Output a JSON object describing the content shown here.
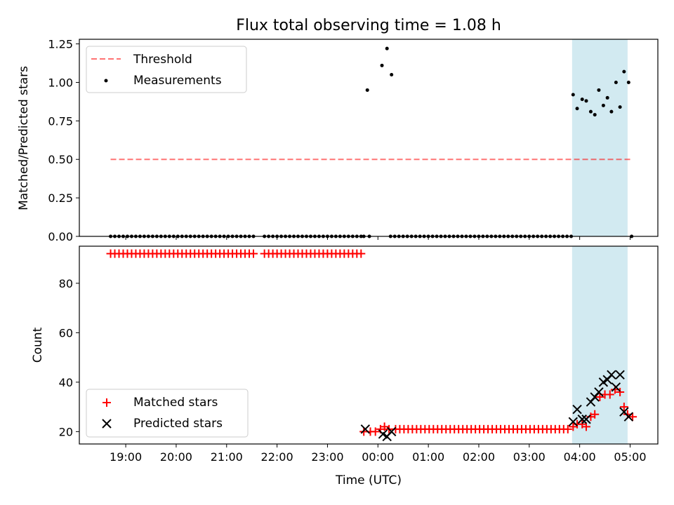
{
  "title": "Flux total observing time = 1.08 h",
  "colors": {
    "threshold": "#ff0000",
    "measurement": "#000000",
    "matched": "#ff0000",
    "predicted": "#000000",
    "span": "#add8e6"
  },
  "chart_data": [
    {
      "type": "scatter",
      "ylabel": "Matched/Predicted stars",
      "ylim": [
        0,
        1.28
      ],
      "yticks": [
        "0.00",
        "0.25",
        "0.50",
        "0.75",
        "1.00",
        "1.25"
      ],
      "ytick_values": [
        0,
        0.25,
        0.5,
        0.75,
        1.0,
        1.25
      ],
      "xlim_hours": [
        18.08,
        29.55
      ],
      "highlight_span_hours": [
        27.85,
        28.95
      ],
      "threshold": {
        "label": "Threshold",
        "value": 0.5,
        "x_range_hours": [
          18.7,
          29.05
        ]
      },
      "measurements": {
        "label": "Measurements",
        "zero_x_ranges": [
          [
            18.7,
            21.6,
            0.0833
          ],
          [
            21.75,
            23.7,
            0.0833
          ],
          [
            24.25,
            27.85,
            0.0833
          ]
        ],
        "points": [
          [
            23.72,
            0
          ],
          [
            23.83,
            0
          ],
          [
            23.79,
            0.95
          ],
          [
            24.08,
            1.11
          ],
          [
            24.18,
            1.22
          ],
          [
            24.27,
            1.05
          ],
          [
            27.87,
            0.92
          ],
          [
            27.95,
            0.83
          ],
          [
            28.05,
            0.89
          ],
          [
            28.13,
            0.88
          ],
          [
            28.22,
            0.81
          ],
          [
            28.3,
            0.79
          ],
          [
            28.38,
            0.95
          ],
          [
            28.47,
            0.85
          ],
          [
            28.55,
            0.9
          ],
          [
            28.63,
            0.81
          ],
          [
            28.72,
            1.0
          ],
          [
            28.8,
            0.84
          ],
          [
            28.88,
            1.07
          ],
          [
            28.97,
            1.0
          ],
          [
            29.03,
            0
          ]
        ]
      },
      "legend": [
        "Threshold",
        "Measurements"
      ]
    },
    {
      "type": "scatter",
      "ylabel": "Count",
      "xlabel": "Time (UTC)",
      "ylim": [
        15,
        95
      ],
      "yticks": [
        "20",
        "40",
        "60",
        "80"
      ],
      "ytick_values": [
        20,
        40,
        60,
        80
      ],
      "xticks": [
        "19:00",
        "20:00",
        "21:00",
        "22:00",
        "23:00",
        "00:00",
        "01:00",
        "02:00",
        "03:00",
        "04:00",
        "05:00"
      ],
      "xtick_hours": [
        19,
        20,
        21,
        22,
        23,
        24,
        25,
        26,
        27,
        28,
        29
      ],
      "matched": {
        "label": "Matched stars",
        "value_ranges": [
          [
            18.7,
            21.6,
            0.0833,
            92
          ],
          [
            21.75,
            23.7,
            0.0833,
            92
          ],
          [
            24.35,
            27.8,
            0.0833,
            21
          ]
        ],
        "points": [
          [
            23.72,
            20
          ],
          [
            23.85,
            20
          ],
          [
            23.95,
            20
          ],
          [
            24.05,
            21
          ],
          [
            24.13,
            22
          ],
          [
            24.22,
            21
          ],
          [
            27.87,
            22
          ],
          [
            27.95,
            23
          ],
          [
            28.05,
            23
          ],
          [
            28.13,
            22
          ],
          [
            28.22,
            26
          ],
          [
            28.3,
            27
          ],
          [
            28.4,
            34
          ],
          [
            28.5,
            35
          ],
          [
            28.6,
            35
          ],
          [
            28.7,
            37
          ],
          [
            28.8,
            36
          ],
          [
            28.88,
            30
          ],
          [
            28.95,
            27
          ],
          [
            29.05,
            26
          ]
        ]
      },
      "predicted": {
        "label": "Predicted stars",
        "points": [
          [
            23.75,
            21
          ],
          [
            24.1,
            19
          ],
          [
            24.18,
            18
          ],
          [
            24.27,
            20
          ],
          [
            27.87,
            24
          ],
          [
            27.95,
            29
          ],
          [
            28.05,
            25
          ],
          [
            28.13,
            25
          ],
          [
            28.22,
            32
          ],
          [
            28.3,
            34
          ],
          [
            28.38,
            36
          ],
          [
            28.47,
            40
          ],
          [
            28.55,
            41
          ],
          [
            28.63,
            43
          ],
          [
            28.72,
            38
          ],
          [
            28.8,
            43
          ],
          [
            28.88,
            28
          ],
          [
            28.97,
            26
          ]
        ]
      },
      "legend": [
        "Matched stars",
        "Predicted stars"
      ]
    }
  ]
}
